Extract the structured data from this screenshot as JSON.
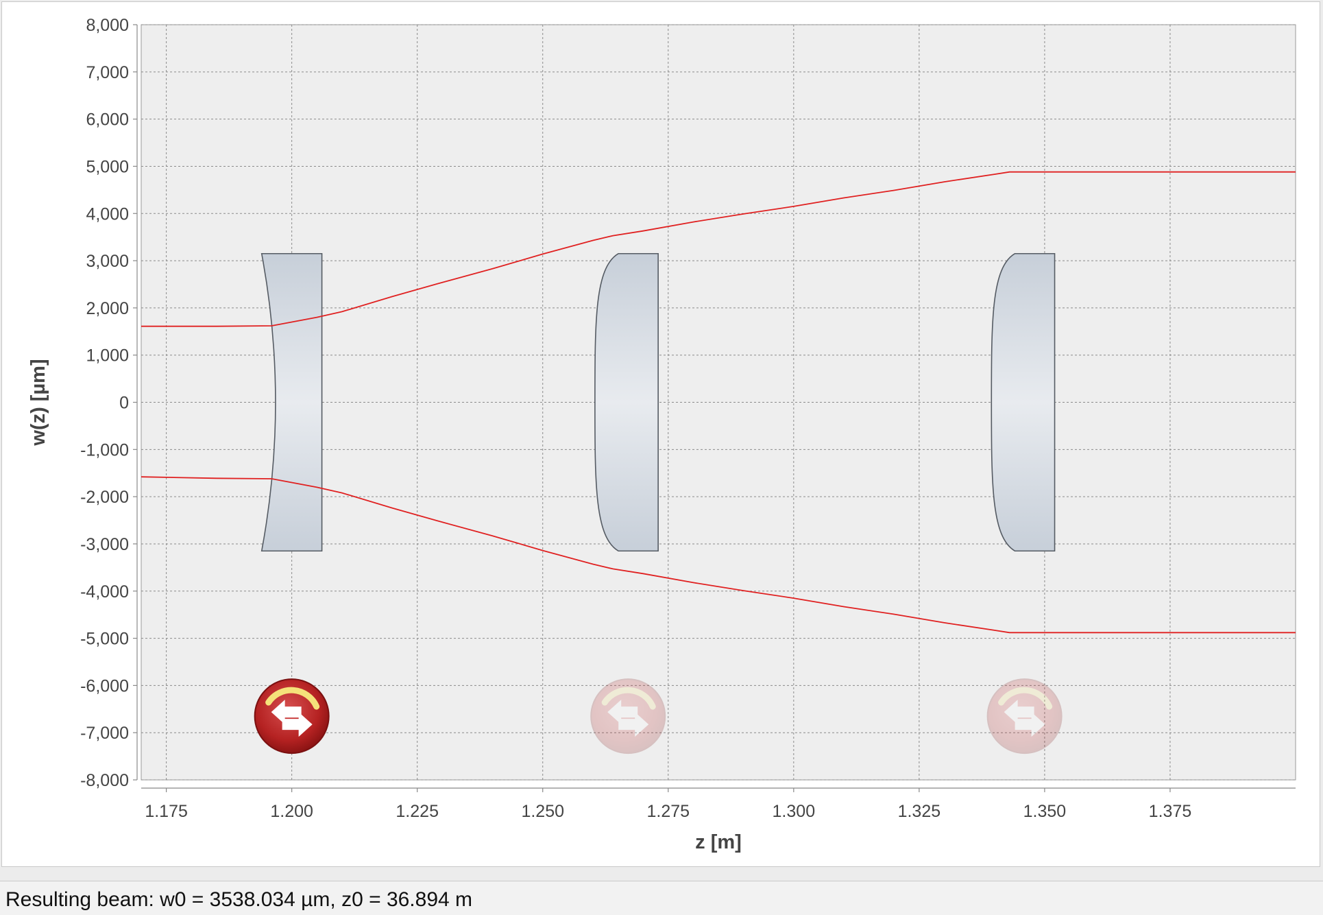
{
  "status": {
    "text": "Resulting beam: w0 = 3538.034 µm, z0 = 36.894 m"
  },
  "chart_data": {
    "type": "line",
    "xlabel": "z [m]",
    "ylabel": "w(z) [µm]",
    "xlim": [
      1.17,
      1.4
    ],
    "ylim": [
      -8000,
      8000
    ],
    "x_ticks": [
      1.175,
      1.2,
      1.225,
      1.25,
      1.275,
      1.3,
      1.325,
      1.35,
      1.375
    ],
    "x_tick_labels": [
      "1.175",
      "1.200",
      "1.225",
      "1.250",
      "1.275",
      "1.300",
      "1.325",
      "1.350",
      "1.375"
    ],
    "y_ticks": [
      8000,
      7000,
      6000,
      5000,
      4000,
      3000,
      2000,
      1000,
      0,
      -1000,
      -2000,
      -3000,
      -4000,
      -5000,
      -6000,
      -7000,
      -8000
    ],
    "y_tick_labels": [
      "8,000",
      "7,000",
      "6,000",
      "5,000",
      "4,000",
      "3,000",
      "2,000",
      "1,000",
      "0",
      "-1,000",
      "-2,000",
      "-3,000",
      "-4,000",
      "-5,000",
      "-6,000",
      "-7,000",
      "-8,000"
    ],
    "grid": true,
    "background_color": "#eeeeee",
    "line_color": "#e02020",
    "series": [
      {
        "x": [
          1.17,
          1.185,
          1.196,
          1.2,
          1.205,
          1.21,
          1.22,
          1.23,
          1.24,
          1.25,
          1.26,
          1.264,
          1.27,
          1.28,
          1.29,
          1.3,
          1.31,
          1.32,
          1.33,
          1.34,
          1.343,
          1.36,
          1.38,
          1.4
        ],
        "y": [
          1610,
          1610,
          1620,
          1700,
          1800,
          1920,
          2240,
          2540,
          2830,
          3140,
          3430,
          3530,
          3630,
          3820,
          3990,
          4150,
          4330,
          4490,
          4670,
          4830,
          4880,
          4880,
          4880,
          4880
        ]
      },
      {
        "x": [
          1.17,
          1.185,
          1.196,
          1.2,
          1.205,
          1.21,
          1.22,
          1.23,
          1.24,
          1.25,
          1.26,
          1.264,
          1.27,
          1.28,
          1.29,
          1.3,
          1.31,
          1.32,
          1.33,
          1.34,
          1.343,
          1.36,
          1.38,
          1.4
        ],
        "y": [
          -1580,
          -1610,
          -1620,
          -1700,
          -1800,
          -1920,
          -2240,
          -2540,
          -2830,
          -3140,
          -3430,
          -3530,
          -3630,
          -3820,
          -3990,
          -4150,
          -4330,
          -4490,
          -4670,
          -4830,
          -4880,
          -4880,
          -4880,
          -4880
        ]
      }
    ],
    "lenses": [
      {
        "type": "plano-concave",
        "z_start": 1.194,
        "z_end": 1.206,
        "aperture_um": 3150,
        "flip_icon": "rotate-arrows-icon",
        "icon_active": true
      },
      {
        "type": "plano-convex",
        "z_start": 1.261,
        "z_end": 1.273,
        "aperture_um": 3150,
        "flip_icon": "rotate-arrows-icon",
        "icon_active": false
      },
      {
        "type": "plano-convex",
        "z_start": 1.34,
        "z_end": 1.352,
        "aperture_um": 3150,
        "flip_icon": "rotate-arrows-icon",
        "icon_active": false
      }
    ]
  }
}
